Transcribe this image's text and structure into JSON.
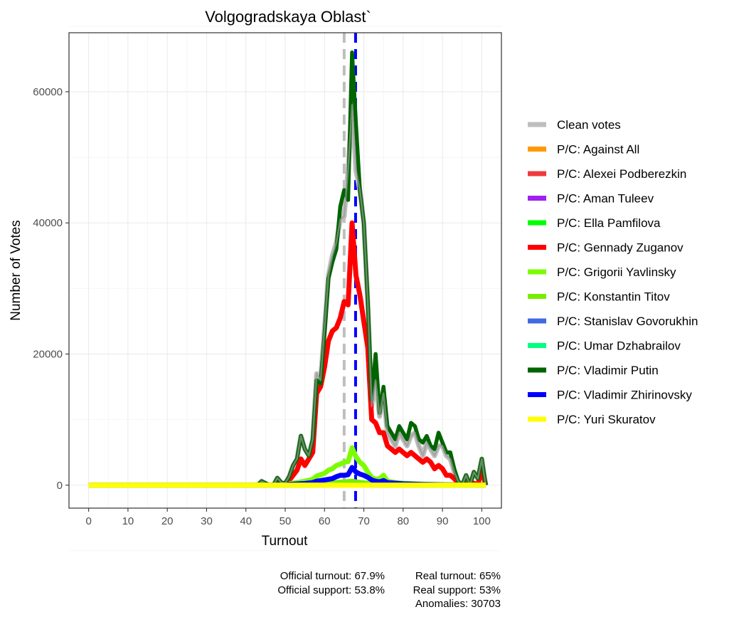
{
  "chart_data": {
    "type": "line",
    "title": "Volgogradskaya Oblast`",
    "xlabel": "Turnout",
    "ylabel": "Number of Votes",
    "xlim": [
      -5,
      105
    ],
    "ylim": [
      -3500,
      69000
    ],
    "x_ticks": [
      0,
      10,
      20,
      30,
      40,
      50,
      60,
      70,
      80,
      90,
      100
    ],
    "y_ticks": [
      0,
      20000,
      40000,
      60000
    ],
    "grid": true,
    "legend_position": "right",
    "vlines": [
      {
        "x": 65,
        "color": "#bebebe",
        "style": "dashed",
        "meaning": "Real turnout"
      },
      {
        "x": 67.9,
        "color": "#0000ff",
        "style": "dashed",
        "meaning": "Official turnout"
      }
    ],
    "series": [
      {
        "name": "Clean votes",
        "color": "#bebebe",
        "width": 7,
        "x": [
          0,
          43,
          44,
          46,
          47,
          48,
          49,
          50,
          51,
          52,
          53,
          54,
          55,
          56,
          57,
          58,
          59,
          60,
          61,
          62,
          63,
          64,
          65,
          66,
          67,
          68,
          69,
          70,
          71,
          72,
          73,
          74,
          75,
          76,
          77,
          78,
          79,
          80,
          81,
          82,
          83,
          84,
          85,
          86,
          87,
          88,
          89,
          90,
          91,
          92,
          93,
          94,
          95,
          96,
          97,
          98,
          99,
          100,
          101
        ],
        "y": [
          0,
          0,
          600,
          0,
          0,
          1100,
          400,
          300,
          1300,
          3000,
          4000,
          7500,
          5500,
          4500,
          7000,
          17000,
          16000,
          24000,
          32000,
          35000,
          37000,
          40500,
          41000,
          48000,
          58000,
          48000,
          45000,
          40000,
          28000,
          12000,
          16000,
          10500,
          14000,
          8000,
          7000,
          6000,
          8000,
          7000,
          6000,
          7500,
          8000,
          6000,
          4500,
          6500,
          5500,
          4500,
          6000,
          6000,
          4500,
          4000,
          2000,
          600,
          0,
          1500,
          0,
          2000,
          1000,
          4000,
          0
        ]
      },
      {
        "name": "P/C: Against All",
        "color": "#ff9900",
        "width": 7,
        "x": [
          0,
          45,
          50,
          55,
          60,
          63,
          65,
          67,
          68,
          70,
          75,
          80,
          90,
          101
        ],
        "y": [
          0,
          0,
          30,
          60,
          150,
          250,
          300,
          380,
          300,
          200,
          80,
          40,
          20,
          0
        ]
      },
      {
        "name": "P/C: Alexei Podberezkin",
        "color": "#ee3b3b",
        "width": 7,
        "x": [
          0,
          45,
          55,
          65,
          68,
          75,
          101
        ],
        "y": [
          0,
          0,
          10,
          30,
          40,
          10,
          0
        ]
      },
      {
        "name": "P/C: Aman Tuleev",
        "color": "#a020f0",
        "width": 7,
        "x": [
          0,
          45,
          50,
          55,
          60,
          65,
          67,
          68,
          70,
          75,
          80,
          90,
          101
        ],
        "y": [
          0,
          0,
          20,
          60,
          150,
          300,
          350,
          300,
          200,
          80,
          40,
          20,
          0
        ]
      },
      {
        "name": "P/C: Ella Pamfilova",
        "color": "#00ff00",
        "width": 7,
        "x": [
          0,
          45,
          55,
          65,
          68,
          75,
          101
        ],
        "y": [
          0,
          0,
          20,
          100,
          120,
          30,
          0
        ]
      },
      {
        "name": "P/C: Gennady Zuganov",
        "color": "#ff0000",
        "width": 7,
        "x": [
          0,
          43,
          44,
          46,
          47,
          48,
          49,
          50,
          51,
          52,
          53,
          54,
          55,
          56,
          57,
          58,
          59,
          60,
          61,
          62,
          63,
          64,
          65,
          66,
          67,
          68,
          69,
          70,
          71,
          72,
          73,
          74,
          75,
          76,
          77,
          78,
          79,
          80,
          81,
          82,
          83,
          84,
          85,
          86,
          87,
          88,
          89,
          90,
          91,
          92,
          93,
          94,
          95,
          96,
          97,
          98,
          99,
          100,
          101
        ],
        "y": [
          0,
          0,
          200,
          0,
          0,
          500,
          200,
          100,
          700,
          1500,
          2300,
          4000,
          3000,
          4000,
          5000,
          14000,
          15000,
          18000,
          22000,
          23500,
          24000,
          25500,
          28000,
          27500,
          40000,
          32000,
          29000,
          25000,
          21000,
          10000,
          9500,
          8000,
          8000,
          6000,
          5500,
          5000,
          5500,
          5000,
          4500,
          5000,
          4500,
          4000,
          3500,
          4000,
          3500,
          2500,
          3000,
          2500,
          1500,
          1500,
          1000,
          300,
          0,
          200,
          0,
          300,
          0,
          2500,
          0
        ]
      },
      {
        "name": "P/C: Grigorii Yavlinsky",
        "color": "#7cfc00",
        "width": 7,
        "x": [
          0,
          45,
          50,
          52,
          55,
          57,
          58,
          60,
          61,
          62,
          63,
          64,
          65,
          66,
          67,
          68,
          69,
          70,
          71,
          72,
          73,
          74,
          75,
          76,
          78,
          80,
          85,
          90,
          101
        ],
        "y": [
          0,
          0,
          150,
          300,
          600,
          900,
          1400,
          1800,
          2300,
          2500,
          3000,
          3200,
          3500,
          3600,
          5700,
          4300,
          3500,
          3000,
          2000,
          1200,
          900,
          1000,
          1500,
          600,
          400,
          300,
          150,
          80,
          0
        ]
      },
      {
        "name": "P/C: Konstantin Titov",
        "color": "#76ee00",
        "width": 7,
        "x": [
          0,
          45,
          50,
          55,
          60,
          65,
          67,
          68,
          70,
          75,
          80,
          90,
          101
        ],
        "y": [
          0,
          0,
          40,
          100,
          300,
          500,
          600,
          500,
          350,
          150,
          80,
          30,
          0
        ]
      },
      {
        "name": "P/C: Stanislav Govorukhin",
        "color": "#4169e1",
        "width": 7,
        "x": [
          0,
          45,
          55,
          65,
          68,
          75,
          101
        ],
        "y": [
          0,
          0,
          10,
          40,
          50,
          15,
          0
        ]
      },
      {
        "name": "P/C: Umar Dzhabrailov",
        "color": "#00ff7f",
        "width": 7,
        "x": [
          0,
          45,
          55,
          65,
          68,
          75,
          101
        ],
        "y": [
          0,
          0,
          10,
          50,
          60,
          20,
          0
        ]
      },
      {
        "name": "P/C: Vladimir Putin",
        "color": "#006400",
        "width": 5.5,
        "x": [
          0,
          43,
          44,
          46,
          47,
          48,
          49,
          50,
          51,
          52,
          53,
          54,
          55,
          56,
          57,
          58,
          59,
          60,
          61,
          62,
          63,
          64,
          65,
          66,
          67,
          68,
          69,
          70,
          71,
          72,
          73,
          74,
          75,
          76,
          77,
          78,
          79,
          80,
          81,
          82,
          83,
          84,
          85,
          86,
          87,
          88,
          89,
          90,
          91,
          92,
          93,
          94,
          95,
          96,
          97,
          98,
          99,
          100,
          101
        ],
        "y": [
          0,
          0,
          600,
          0,
          0,
          1100,
          400,
          300,
          1300,
          3000,
          4000,
          7500,
          5500,
          4500,
          7000,
          16000,
          15500,
          23000,
          31500,
          34000,
          36000,
          42500,
          45000,
          43500,
          66000,
          55000,
          45000,
          40000,
          28000,
          13000,
          20000,
          11000,
          15000,
          9000,
          8000,
          7000,
          9000,
          8000,
          7000,
          9500,
          9000,
          7000,
          6500,
          7500,
          6000,
          5500,
          8000,
          6500,
          5000,
          5000,
          2500,
          600,
          0,
          1500,
          0,
          2000,
          1000,
          4000,
          0
        ]
      },
      {
        "name": "P/C: Vladimir Zhirinovsky",
        "color": "#0000ff",
        "width": 7,
        "x": [
          0,
          45,
          50,
          52,
          55,
          57,
          58,
          60,
          62,
          63,
          64,
          65,
          66,
          67,
          68,
          69,
          70,
          71,
          72,
          73,
          74,
          75,
          76,
          78,
          80,
          85,
          90,
          101
        ],
        "y": [
          0,
          0,
          100,
          150,
          250,
          400,
          600,
          800,
          1000,
          1300,
          1500,
          1500,
          1600,
          2700,
          2000,
          1700,
          1500,
          1200,
          800,
          600,
          500,
          700,
          400,
          300,
          200,
          100,
          50,
          0
        ]
      },
      {
        "name": "P/C: Yuri Skuratov",
        "color": "#ffff00",
        "width": 7,
        "x": [
          0,
          101
        ],
        "y": [
          0,
          0
        ]
      }
    ]
  },
  "caption": {
    "left": [
      "Official turnout: 67.9%",
      "Official support: 53.8%"
    ],
    "right": [
      "Real turnout: 65%",
      "Real support: 53%",
      "Anomalies: 30703"
    ]
  }
}
